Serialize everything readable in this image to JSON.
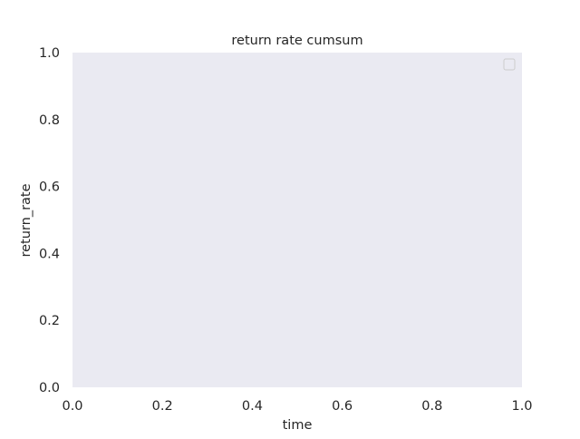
{
  "chart_data": {
    "type": "line",
    "title": "return rate cumsum",
    "xlabel": "time",
    "ylabel": "return_rate",
    "xlim": [
      0.0,
      1.0
    ],
    "ylim": [
      0.0,
      1.0
    ],
    "xticks": [
      "0.0",
      "0.2",
      "0.4",
      "0.6",
      "0.8",
      "1.0"
    ],
    "yticks": [
      "0.0",
      "0.2",
      "0.4",
      "0.6",
      "0.8",
      "1.0"
    ],
    "series": [],
    "grid": false,
    "legend": {
      "placement": "top-right",
      "entries": []
    },
    "colors": {
      "axes_background": "#eaeaf2",
      "text": "#262626",
      "legend_border": "#cccccc"
    }
  }
}
